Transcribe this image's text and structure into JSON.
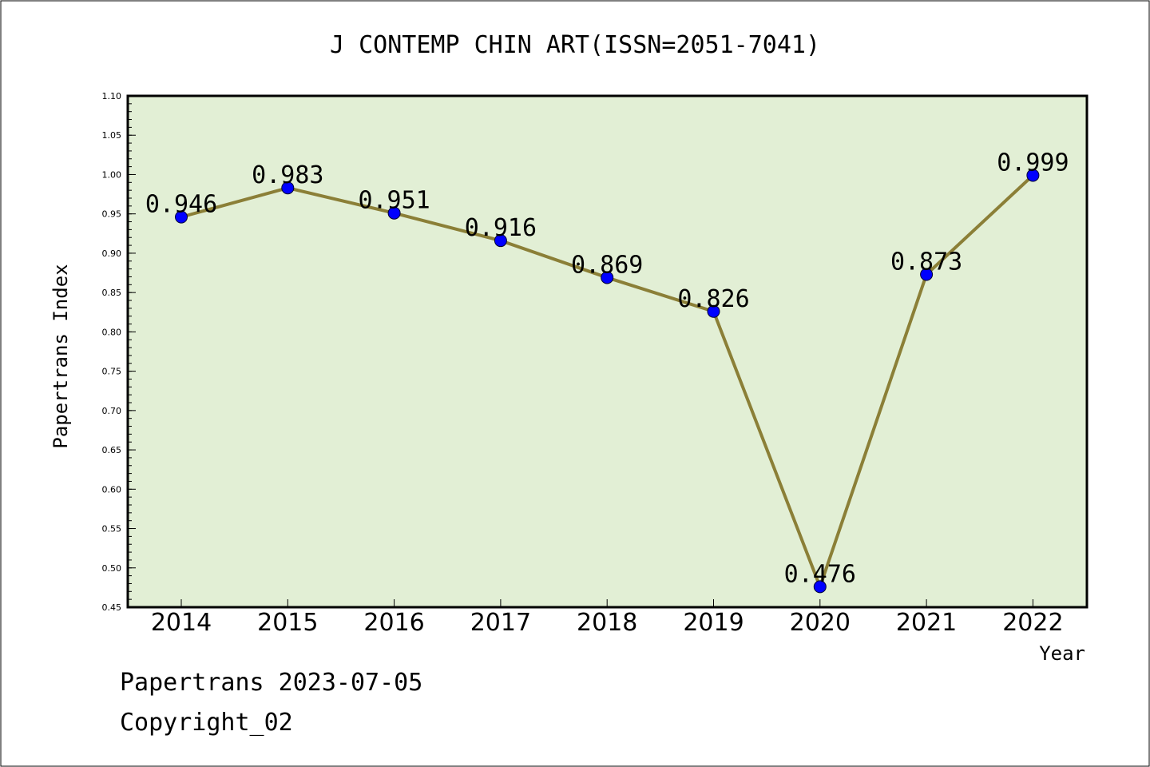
{
  "chart_data": {
    "type": "line",
    "title": "J CONTEMP CHIN ART(ISSN=2051-7041)",
    "xlabel": "Year",
    "ylabel": "Papertrans Index",
    "categories": [
      "2014",
      "2015",
      "2016",
      "2017",
      "2018",
      "2019",
      "2020",
      "2021",
      "2022"
    ],
    "series": [
      {
        "values": [
          0.946,
          0.983,
          0.951,
          0.916,
          0.869,
          0.826,
          0.476,
          0.873,
          0.999
        ],
        "data_labels": [
          "0.946",
          "0.983",
          "0.951",
          "0.916",
          "0.869",
          "0.826",
          "0.476",
          "0.873",
          "0.999"
        ]
      }
    ],
    "ylim": [
      0.45,
      1.1
    ],
    "yticks": [
      "0.45",
      "0.50",
      "0.55",
      "0.60",
      "0.65",
      "0.70",
      "0.75",
      "0.80",
      "0.85",
      "0.90",
      "0.95",
      "1.00",
      "1.05",
      "1.10"
    ],
    "grid": false,
    "colors": {
      "plot_background": "#e2efd5",
      "line": "#8b7f37",
      "marker": "#0000ff"
    }
  },
  "footer": {
    "source": "Papertrans 2023-07-05",
    "copyright": "Copyright_02"
  }
}
